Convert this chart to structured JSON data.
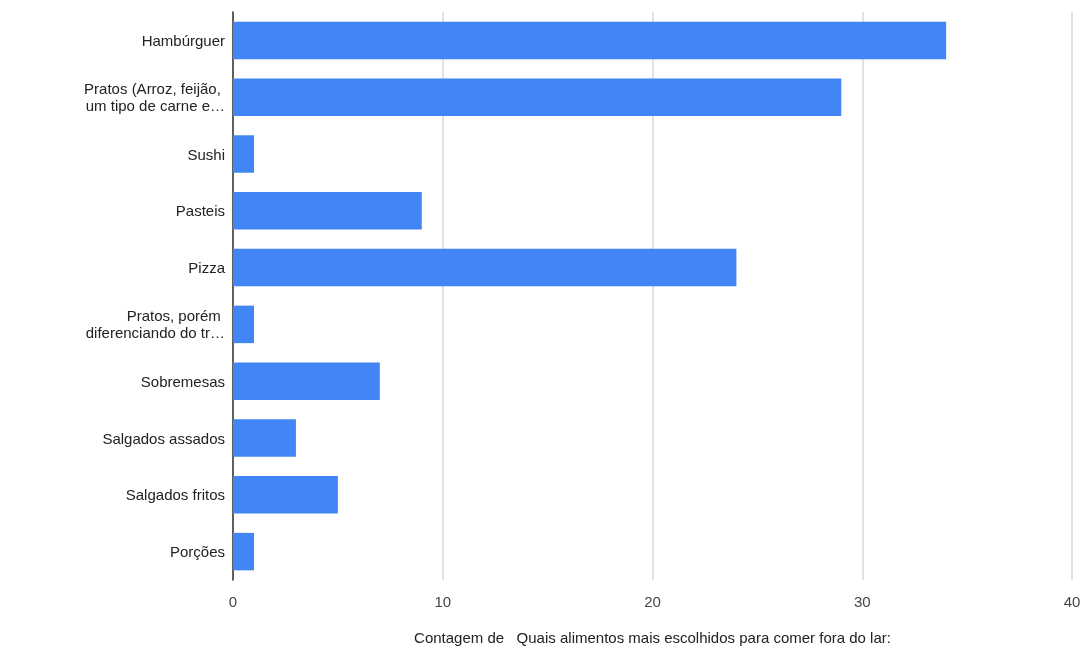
{
  "chart_data": {
    "type": "bar",
    "orientation": "horizontal",
    "categories": [
      "Hambúrguer",
      "Pratos (Arroz, feijão, um tipo de carne e…",
      "Sushi",
      "Pasteis",
      "Pizza",
      "Pratos, porém diferenciando do tr…",
      "Sobremesas",
      "Salgados assados",
      "Salgados fritos",
      "Porções"
    ],
    "values": [
      34,
      29,
      1,
      9,
      24,
      1,
      7,
      3,
      5,
      1
    ],
    "color": "#4285f4",
    "xlim": [
      0,
      40
    ],
    "xticks": [
      0,
      10,
      20,
      30,
      40
    ],
    "xlabel": "Contagem de   Quais alimentos mais escolhidos para comer fora do lar:",
    "grid": "x"
  }
}
